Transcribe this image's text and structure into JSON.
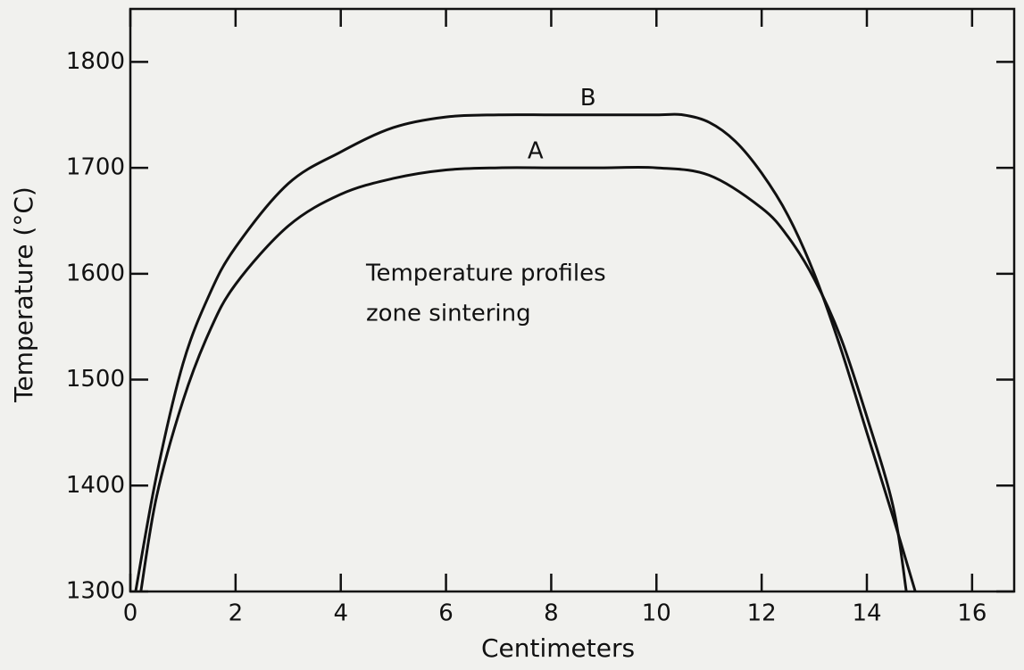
{
  "chart_data": {
    "type": "line",
    "annotation": [
      "Temperature profiles",
      "zone sintering"
    ],
    "xlabel": "Centimeters",
    "ylabel": "Temperature (°C)",
    "xlim": [
      0,
      16.8
    ],
    "ylim": [
      1300,
      1850
    ],
    "xticks": [
      0,
      2,
      4,
      6,
      8,
      10,
      12,
      14,
      16
    ],
    "yticks": [
      1300,
      1400,
      1500,
      1600,
      1700,
      1800
    ],
    "series": [
      {
        "name": "A",
        "color": "#111111",
        "x": [
          0.2,
          0.5,
          1,
          1.5,
          2,
          3,
          4,
          5,
          6,
          7,
          8,
          9,
          10,
          11,
          12,
          12.5,
          13,
          13.5,
          14,
          14.5,
          14.75
        ],
        "values": [
          1300,
          1390,
          1480,
          1545,
          1590,
          1645,
          1675,
          1690,
          1698,
          1700,
          1700,
          1700,
          1700,
          1693,
          1662,
          1635,
          1595,
          1540,
          1465,
          1380,
          1300
        ]
      },
      {
        "name": "B",
        "color": "#111111",
        "x": [
          0.1,
          0.5,
          1,
          1.5,
          2,
          3,
          4,
          5,
          6,
          7,
          8,
          9,
          10,
          10.5,
          11,
          11.5,
          12,
          12.5,
          13,
          13.5,
          14,
          14.5,
          14.92
        ],
        "values": [
          1300,
          1410,
          1515,
          1580,
          1625,
          1685,
          1715,
          1738,
          1748,
          1750,
          1750,
          1750,
          1750,
          1750,
          1743,
          1725,
          1695,
          1655,
          1600,
          1530,
          1450,
          1370,
          1300
        ]
      }
    ]
  }
}
